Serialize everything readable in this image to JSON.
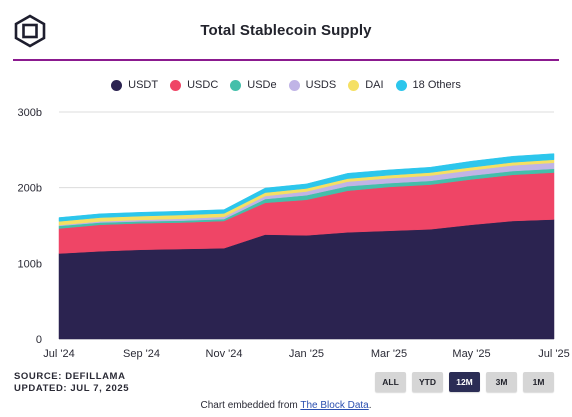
{
  "header": {
    "title": "Total Stablecoin Supply"
  },
  "legend": [
    {
      "label": "USDT",
      "color": "#2b2350"
    },
    {
      "label": "USDC",
      "color": "#ef4566"
    },
    {
      "label": "USDe",
      "color": "#44bfaa"
    },
    {
      "label": "USDS",
      "color": "#c0b4e6"
    },
    {
      "label": "DAI",
      "color": "#f5e063"
    },
    {
      "label": "18 Others",
      "color": "#2cc6ec"
    }
  ],
  "footer": {
    "source": "SOURCE: DEFILLAMA",
    "updated": "UPDATED: JUL 7, 2025",
    "embed_prefix": "Chart embedded from ",
    "embed_link": "The Block Data",
    "embed_suffix": "."
  },
  "ranges": [
    {
      "label": "ALL",
      "active": false
    },
    {
      "label": "YTD",
      "active": false
    },
    {
      "label": "12M",
      "active": true
    },
    {
      "label": "3M",
      "active": false
    },
    {
      "label": "1M",
      "active": false
    }
  ],
  "chart_data": {
    "type": "area",
    "stacked": true,
    "title": "Total Stablecoin Supply",
    "xlabel": "",
    "ylabel": "",
    "ylim": [
      0,
      300
    ],
    "y_unit": "b",
    "y_ticks": [
      "0",
      "100b",
      "200b",
      "300b"
    ],
    "grid": true,
    "legend_position": "top",
    "x_ticks": [
      "Jul '24",
      "Sep '24",
      "Nov '24",
      "Jan '25",
      "Mar '25",
      "May '25",
      "Jul '25"
    ],
    "x": [
      "Jul '24",
      "Aug '24",
      "Sep '24",
      "Oct '24",
      "Nov '24",
      "Dec '24",
      "Jan '25",
      "Feb '25",
      "Mar '25",
      "Apr '25",
      "May '25",
      "Jun '25",
      "Jul '25"
    ],
    "series": [
      {
        "name": "USDT",
        "color": "#2b2350",
        "values": [
          113,
          116,
          118,
          119,
          120,
          138,
          137,
          141,
          143,
          145,
          151,
          156,
          158
        ]
      },
      {
        "name": "USDC",
        "color": "#ef4566",
        "values": [
          33,
          35,
          35,
          35,
          36,
          42,
          47,
          55,
          58,
          59,
          60,
          61,
          62
        ]
      },
      {
        "name": "USDe",
        "color": "#44bfaa",
        "values": [
          3.5,
          3,
          2.5,
          2.5,
          2.5,
          5,
          6,
          6,
          5,
          5,
          5,
          5,
          5
        ]
      },
      {
        "name": "USDS",
        "color": "#c0b4e6",
        "values": [
          1,
          1.5,
          2,
          2.5,
          3,
          4,
          5,
          6,
          6.5,
          7,
          7,
          7.5,
          8
        ]
      },
      {
        "name": "DAI",
        "color": "#f5e063",
        "values": [
          5,
          5,
          5,
          5,
          4.5,
          4.5,
          4,
          4,
          4,
          4,
          4,
          4,
          4
        ]
      },
      {
        "name": "18 Others",
        "color": "#2cc6ec",
        "values": [
          5,
          5,
          5,
          5,
          5,
          6,
          6,
          7,
          7,
          7,
          8,
          8,
          8
        ]
      }
    ]
  }
}
